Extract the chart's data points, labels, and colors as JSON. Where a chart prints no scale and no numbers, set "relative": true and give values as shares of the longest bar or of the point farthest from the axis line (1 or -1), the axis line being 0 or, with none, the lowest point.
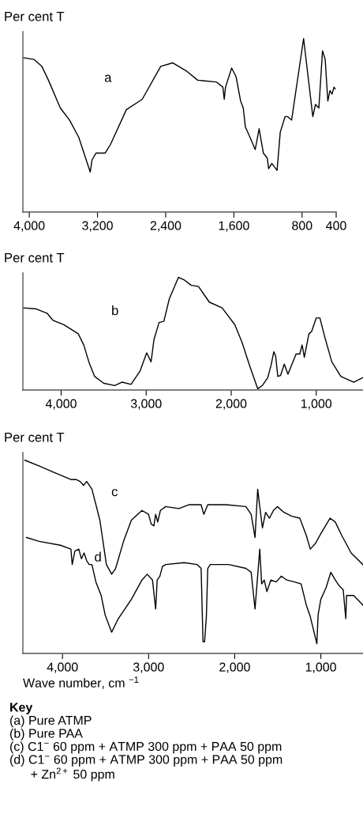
{
  "chart_data": [
    {
      "type": "line",
      "relative": true,
      "ylabel": "Per cent T",
      "xlim": [
        4075,
        400
      ],
      "xticks": [
        {
          "value": 4000,
          "label": "4,000"
        },
        {
          "value": 3200,
          "label": "3,200"
        },
        {
          "value": 2400,
          "label": "2,400"
        },
        {
          "value": 1600,
          "label": "1,600"
        },
        {
          "value": 800,
          "label": "800"
        },
        {
          "value": 400,
          "label": "400"
        }
      ],
      "series": [
        {
          "name": "a",
          "color": "#000000",
          "x": [
            4074,
            3946,
            3853,
            3775,
            3636,
            3527,
            3419,
            3285,
            3264,
            3217,
            3109,
            3047,
            2861,
            2675,
            2458,
            2318,
            2148,
            2024,
            1807,
            1729,
            1713,
            1698,
            1626,
            1574,
            1521,
            1490,
            1465,
            1419,
            1350,
            1304,
            1254,
            1208,
            1192,
            1155,
            1093,
            1056,
            1000,
            969,
            923,
            782,
            674,
            643,
            603,
            560,
            529,
            498,
            473,
            448,
            426,
            412
          ],
          "values": [
            0.89,
            0.88,
            0.84,
            0.76,
            0.6,
            0.53,
            0.43,
            0.23,
            0.3,
            0.34,
            0.34,
            0.39,
            0.59,
            0.65,
            0.84,
            0.86,
            0.81,
            0.76,
            0.75,
            0.72,
            0.65,
            0.72,
            0.83,
            0.78,
            0.64,
            0.6,
            0.49,
            0.44,
            0.36,
            0.48,
            0.34,
            0.31,
            0.25,
            0.28,
            0.24,
            0.46,
            0.55,
            0.55,
            0.53,
            1.0,
            0.55,
            0.62,
            0.6,
            0.93,
            0.88,
            0.64,
            0.7,
            0.68,
            0.72,
            0.71
          ]
        }
      ]
    },
    {
      "type": "line",
      "relative": true,
      "ylabel": "Per cent T",
      "xlim": [
        4450,
        450
      ],
      "xticks": [
        {
          "value": 4000,
          "label": "4,000"
        },
        {
          "value": 3000,
          "label": "3,000"
        },
        {
          "value": 2000,
          "label": "2,000"
        },
        {
          "value": 1000,
          "label": "1,000"
        }
      ],
      "series": [
        {
          "name": "b",
          "color": "#000000",
          "x": [
            4450,
            4291,
            4163,
            4098,
            3970,
            3799,
            3734,
            3670,
            3606,
            3499,
            3370,
            3285,
            3178,
            3071,
            2994,
            2942,
            2908,
            2848,
            2792,
            2728,
            2621,
            2557,
            2471,
            2385,
            2257,
            2107,
            1957,
            1871,
            1785,
            1688,
            1634,
            1570,
            1531,
            1499,
            1477,
            1452,
            1419,
            1376,
            1333,
            1237,
            1194,
            1166,
            1140,
            1086,
            1054,
            1000,
            957,
            903,
            817,
            710,
            559,
            452
          ],
          "values": [
            0.73,
            0.72,
            0.68,
            0.62,
            0.58,
            0.5,
            0.4,
            0.24,
            0.12,
            0.06,
            0.04,
            0.07,
            0.05,
            0.17,
            0.33,
            0.25,
            0.45,
            0.6,
            0.61,
            0.81,
            1.0,
            0.98,
            0.93,
            0.92,
            0.78,
            0.73,
            0.58,
            0.42,
            0.22,
            0.01,
            0.04,
            0.11,
            0.22,
            0.34,
            0.3,
            0.12,
            0.13,
            0.23,
            0.14,
            0.32,
            0.32,
            0.4,
            0.29,
            0.5,
            0.52,
            0.64,
            0.64,
            0.48,
            0.25,
            0.12,
            0.07,
            0.11
          ]
        }
      ]
    },
    {
      "type": "line",
      "relative": true,
      "ylabel": "Per cent T",
      "xlabel": "Wave number, cm $^{−1}$",
      "xlim": [
        4460,
        510
      ],
      "xticks": [
        {
          "value": 4000,
          "label": "4,000"
        },
        {
          "value": 3000,
          "label": "3,000"
        },
        {
          "value": 2000,
          "label": "2,000"
        },
        {
          "value": 1000,
          "label": "1,000"
        }
      ],
      "series": [
        {
          "name": "c",
          "color": "#000000",
          "x": [
            4437,
            4269,
            4116,
            3902,
            3841,
            3795,
            3756,
            3719,
            3658,
            3566,
            3490,
            3429,
            3383,
            3291,
            3200,
            3077,
            3001,
            2970,
            2939,
            2918,
            2894,
            2863,
            2802,
            2650,
            2527,
            2390,
            2359,
            2313,
            2100,
            1870,
            1809,
            1764,
            1733,
            1709,
            1678,
            1641,
            1596,
            1550,
            1504,
            1428,
            1336,
            1244,
            1168,
            1122,
            1061,
            1000,
            893,
            832,
            756,
            648,
            511
          ],
          "values": [
            1.0,
            0.97,
            0.94,
            0.9,
            0.9,
            0.89,
            0.87,
            0.89,
            0.85,
            0.69,
            0.46,
            0.41,
            0.44,
            0.58,
            0.69,
            0.74,
            0.72,
            0.67,
            0.66,
            0.72,
            0.68,
            0.74,
            0.76,
            0.75,
            0.77,
            0.77,
            0.72,
            0.77,
            0.77,
            0.76,
            0.72,
            0.6,
            0.85,
            0.76,
            0.65,
            0.73,
            0.7,
            0.74,
            0.76,
            0.73,
            0.71,
            0.7,
            0.61,
            0.54,
            0.57,
            0.62,
            0.7,
            0.68,
            0.61,
            0.52,
            0.46
          ]
        },
        {
          "name": "d",
          "color": "#000000",
          "x": [
            4418,
            4269,
            4024,
            3902,
            3887,
            3856,
            3811,
            3780,
            3749,
            3719,
            3689,
            3658,
            3612,
            3551,
            3505,
            3429,
            3352,
            3200,
            3077,
            3016,
            2955,
            2918,
            2900,
            2869,
            2839,
            2802,
            2588,
            2436,
            2390,
            2368,
            2350,
            2329,
            2313,
            2283,
            2069,
            1870,
            1809,
            1764,
            1709,
            1687,
            1657,
            1626,
            1580,
            1519,
            1458,
            1397,
            1306,
            1229,
            1168,
            1122,
            1046,
            1031,
            1000,
            939,
            884,
            832,
            786,
            740,
            710,
            701,
            618,
            511
          ],
          "values": [
            0.6,
            0.58,
            0.56,
            0.54,
            0.46,
            0.53,
            0.54,
            0.49,
            0.52,
            0.48,
            0.46,
            0.46,
            0.37,
            0.3,
            0.2,
            0.11,
            0.18,
            0.28,
            0.38,
            0.41,
            0.38,
            0.23,
            0.38,
            0.4,
            0.45,
            0.46,
            0.47,
            0.46,
            0.44,
            0.06,
            0.06,
            0.19,
            0.44,
            0.46,
            0.46,
            0.44,
            0.42,
            0.23,
            0.54,
            0.36,
            0.38,
            0.32,
            0.38,
            0.37,
            0.4,
            0.38,
            0.37,
            0.36,
            0.25,
            0.19,
            0.05,
            0.2,
            0.28,
            0.34,
            0.42,
            0.38,
            0.35,
            0.33,
            0.18,
            0.3,
            0.3,
            0.25
          ]
        }
      ],
      "annotations": [
        "Key",
        "(a) Pure ATMP",
        "(b) Pure PAA",
        "(c) C1$^{−}$ 60 ppm + ATMP 300 ppm + PAA 50 ppm",
        "(d) C1$^{−}$ 60 ppm + ATMP 300 ppm + PAA 50 ppm",
        "      + Zn$^{2+}$ 50 ppm"
      ]
    }
  ]
}
